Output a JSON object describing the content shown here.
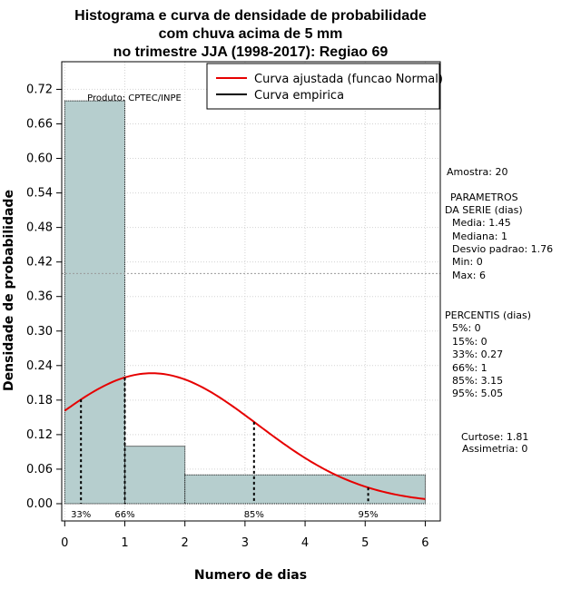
{
  "chart_data": {
    "type": "histogram",
    "title_lines": [
      "Histograma e curva de densidade de probabilidade",
      "com chuva acima de 5 mm",
      "no trimestre JJA (1998-2017): Regiao 69"
    ],
    "xlabel": "Numero de dias",
    "ylabel": "Densidade de probabilidade",
    "xlim": [
      -0.05,
      6.25
    ],
    "ylim": [
      -0.03,
      0.768
    ],
    "x_ticks": [
      0,
      1,
      2,
      3,
      4,
      5,
      6
    ],
    "y_ticks": [
      0.0,
      0.06,
      0.12,
      0.18,
      0.24,
      0.3,
      0.36,
      0.42,
      0.48,
      0.54,
      0.6,
      0.66,
      0.72
    ],
    "y_tick_labels": [
      "0.00",
      "0.06",
      "0.12",
      "0.18",
      "0.24",
      "0.30",
      "0.36",
      "0.42",
      "0.48",
      "0.54",
      "0.60",
      "0.66",
      "0.72"
    ],
    "grid": true,
    "hline_y": 0.4,
    "bins": [
      {
        "start": 0,
        "end": 1,
        "density": 0.7
      },
      {
        "start": 1,
        "end": 2,
        "density": 0.1
      },
      {
        "start": 2,
        "end": 6,
        "density": 0.05
      }
    ],
    "bar_color": "#b6cece",
    "normal_curve": {
      "mean": 1.45,
      "sd": 1.76,
      "color": "#e60000",
      "x_from": 0,
      "x_to": 6
    },
    "percentile_lines": [
      {
        "x": 0.27,
        "label": "33%"
      },
      {
        "x": 1,
        "label": "66%"
      },
      {
        "x": 3.15,
        "label": "85%"
      },
      {
        "x": 5.05,
        "label": "95%"
      }
    ],
    "product_label": "Produto: CPTEC/INPE",
    "legend": [
      {
        "label": "Curva ajustada (funcao Normal)",
        "color": "#e60000"
      },
      {
        "label": "Curva empirica",
        "color": "#000000"
      }
    ]
  },
  "side_panel": {
    "sample": "Amostra: 20",
    "params_title_1": "PARAMETROS",
    "params_title_2": "DA SERIE (dias)",
    "params": [
      "Media: 1.45",
      "Mediana: 1",
      "Desvio padrao: 1.76",
      "Min: 0",
      "Max: 6"
    ],
    "percentis_title": "PERCENTIS (dias)",
    "percentis": [
      "5%: 0",
      "15%: 0",
      "33%: 0.27",
      "66%: 1",
      "85%: 3.15",
      "95%: 5.05"
    ],
    "curtose": "Curtose: 1.81",
    "assimetria": "Assimetria: 0"
  }
}
